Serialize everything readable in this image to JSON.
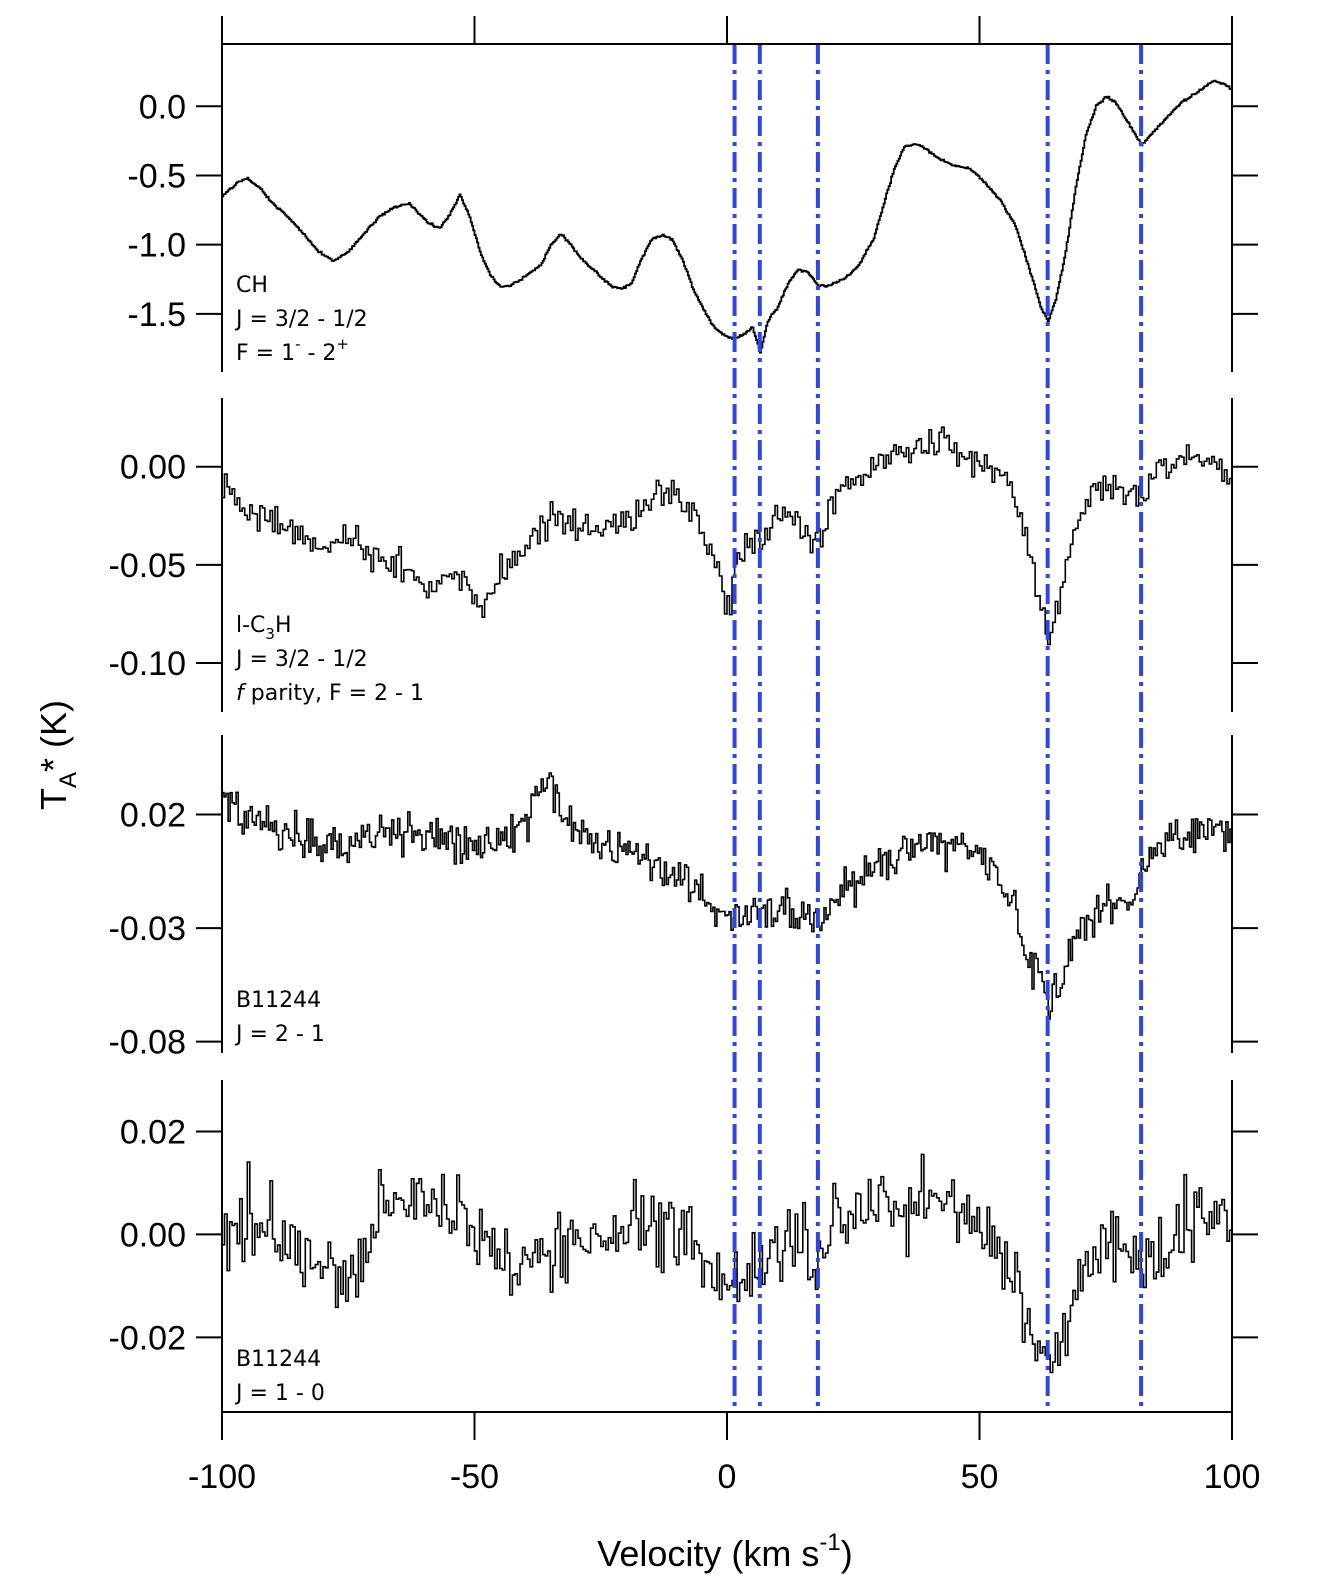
{
  "chart_data": {
    "type": "line",
    "xaxis": {
      "label_main": "Velocity (km s",
      "label_sup": "-1",
      "label_close": ")",
      "range": [
        -100,
        100
      ],
      "ticks": [
        -100,
        -50,
        0,
        50,
        100
      ],
      "tick_labels": [
        "-100",
        "-50",
        "0",
        "50",
        "100"
      ]
    },
    "yaxis": {
      "label_main": "T",
      "label_sub": "A",
      "label_rest": "* (K)"
    },
    "reference_lines_kms": [
      1.5,
      6.5,
      18.0,
      63.5,
      82.0
    ],
    "reference_line_color": "#2e46e6",
    "trace_color": "#000000",
    "panels": [
      {
        "id": "ch",
        "ylim": [
          -1.92,
          0.45
        ],
        "ticks": [
          0.0,
          -0.5,
          -1.0,
          -1.5
        ],
        "tick_labels": [
          "0.0",
          "-0.5",
          "-1.0",
          "-1.5"
        ],
        "label_lines": [
          [
            {
              "t": "CH"
            }
          ],
          [
            {
              "t": "J = 3/2 - 1/2"
            }
          ],
          [
            {
              "t": "F = 1"
            },
            {
              "t": "-",
              "sup": true
            },
            {
              "t": " - 2"
            },
            {
              "t": "+",
              "sup": true
            }
          ]
        ],
        "noise": 0.006,
        "step": 0.25,
        "points": [
          [
            -100,
            -0.65
          ],
          [
            -97,
            -0.55
          ],
          [
            -95,
            -0.52
          ],
          [
            -93,
            -0.58
          ],
          [
            -90,
            -0.7
          ],
          [
            -87,
            -0.8
          ],
          [
            -84,
            -0.92
          ],
          [
            -81,
            -1.05
          ],
          [
            -78,
            -1.12
          ],
          [
            -75,
            -1.05
          ],
          [
            -72,
            -0.92
          ],
          [
            -69,
            -0.8
          ],
          [
            -66,
            -0.73
          ],
          [
            -63,
            -0.7
          ],
          [
            -61,
            -0.78
          ],
          [
            -59,
            -0.85
          ],
          [
            -57,
            -0.88
          ],
          [
            -55,
            -0.78
          ],
          [
            -53,
            -0.64
          ],
          [
            -51,
            -0.8
          ],
          [
            -49,
            -1.05
          ],
          [
            -47,
            -1.22
          ],
          [
            -45,
            -1.3
          ],
          [
            -43,
            -1.3
          ],
          [
            -41,
            -1.25
          ],
          [
            -39,
            -1.2
          ],
          [
            -37,
            -1.15
          ],
          [
            -35,
            -1.0
          ],
          [
            -33,
            -0.92
          ],
          [
            -31,
            -1.0
          ],
          [
            -29,
            -1.1
          ],
          [
            -26,
            -1.2
          ],
          [
            -23,
            -1.3
          ],
          [
            -21,
            -1.32
          ],
          [
            -19,
            -1.28
          ],
          [
            -17,
            -1.1
          ],
          [
            -15,
            -0.96
          ],
          [
            -13,
            -0.93
          ],
          [
            -11,
            -0.96
          ],
          [
            -9,
            -1.1
          ],
          [
            -7,
            -1.3
          ],
          [
            -5,
            -1.45
          ],
          [
            -3,
            -1.58
          ],
          [
            -1,
            -1.65
          ],
          [
            1,
            -1.68
          ],
          [
            3,
            -1.65
          ],
          [
            5,
            -1.6
          ],
          [
            6.5,
            -1.78
          ],
          [
            8,
            -1.55
          ],
          [
            10,
            -1.45
          ],
          [
            12,
            -1.28
          ],
          [
            14,
            -1.18
          ],
          [
            16,
            -1.2
          ],
          [
            18,
            -1.3
          ],
          [
            20,
            -1.3
          ],
          [
            23,
            -1.25
          ],
          [
            26,
            -1.15
          ],
          [
            29,
            -0.95
          ],
          [
            31,
            -0.7
          ],
          [
            33,
            -0.45
          ],
          [
            35,
            -0.3
          ],
          [
            37,
            -0.27
          ],
          [
            39,
            -0.3
          ],
          [
            42,
            -0.38
          ],
          [
            45,
            -0.43
          ],
          [
            48,
            -0.45
          ],
          [
            51,
            -0.55
          ],
          [
            54,
            -0.68
          ],
          [
            57,
            -0.86
          ],
          [
            60,
            -1.2
          ],
          [
            62,
            -1.45
          ],
          [
            63.5,
            -1.55
          ],
          [
            65,
            -1.4
          ],
          [
            67,
            -1.05
          ],
          [
            69,
            -0.58
          ],
          [
            71,
            -0.2
          ],
          [
            73,
            0.0
          ],
          [
            75,
            0.07
          ],
          [
            77,
            0.02
          ],
          [
            79,
            -0.1
          ],
          [
            81,
            -0.22
          ],
          [
            82,
            -0.28
          ],
          [
            84,
            -0.2
          ],
          [
            87,
            -0.08
          ],
          [
            90,
            0.03
          ],
          [
            93,
            0.1
          ],
          [
            96,
            0.18
          ],
          [
            98,
            0.17
          ],
          [
            100,
            0.12
          ]
        ]
      },
      {
        "id": "c3h",
        "ylim": [
          -0.125,
          0.035
        ],
        "ticks": [
          0.0,
          -0.05,
          -0.1
        ],
        "tick_labels": [
          "0.00",
          "-0.05",
          "-0.10"
        ],
        "label_lines": [
          [
            {
              "t": "l-C"
            },
            {
              "t": "3",
              "sub": true
            },
            {
              "t": "H"
            }
          ],
          [
            {
              "t": "J = 3/2 - 1/2"
            }
          ],
          [
            {
              "t": "f",
              "italic": true
            },
            {
              "t": "  parity, F = 2 - 1"
            }
          ]
        ],
        "noise": 0.006,
        "step": 0.5,
        "points": [
          [
            -100,
            -0.01
          ],
          [
            -95,
            -0.022
          ],
          [
            -90,
            -0.028
          ],
          [
            -85,
            -0.033
          ],
          [
            -80,
            -0.04
          ],
          [
            -75,
            -0.035
          ],
          [
            -70,
            -0.045
          ],
          [
            -65,
            -0.05
          ],
          [
            -60,
            -0.06
          ],
          [
            -56,
            -0.06
          ],
          [
            -52,
            -0.06
          ],
          [
            -49,
            -0.07
          ],
          [
            -46,
            -0.06
          ],
          [
            -43,
            -0.048
          ],
          [
            -40,
            -0.04
          ],
          [
            -37,
            -0.03
          ],
          [
            -33,
            -0.025
          ],
          [
            -30,
            -0.028
          ],
          [
            -25,
            -0.033
          ],
          [
            -20,
            -0.03
          ],
          [
            -15,
            -0.018
          ],
          [
            -12,
            -0.01
          ],
          [
            -9,
            -0.02
          ],
          [
            -6,
            -0.03
          ],
          [
            -3,
            -0.045
          ],
          [
            -1,
            -0.07
          ],
          [
            0.5,
            -0.065
          ],
          [
            2,
            -0.045
          ],
          [
            5,
            -0.038
          ],
          [
            8,
            -0.035
          ],
          [
            11,
            -0.022
          ],
          [
            14,
            -0.03
          ],
          [
            17,
            -0.04
          ],
          [
            20,
            -0.025
          ],
          [
            23,
            -0.008
          ],
          [
            27,
            -0.005
          ],
          [
            31,
            0.002
          ],
          [
            35,
            0.007
          ],
          [
            39,
            0.01
          ],
          [
            43,
            0.017
          ],
          [
            46,
            0.005
          ],
          [
            50,
            0.0
          ],
          [
            54,
            -0.005
          ],
          [
            57,
            -0.015
          ],
          [
            59,
            -0.035
          ],
          [
            61,
            -0.06
          ],
          [
            63.5,
            -0.098
          ],
          [
            65,
            -0.075
          ],
          [
            67,
            -0.05
          ],
          [
            69,
            -0.028
          ],
          [
            72,
            -0.012
          ],
          [
            75,
            -0.01
          ],
          [
            78,
            -0.012
          ],
          [
            81,
            -0.016
          ],
          [
            83,
            -0.01
          ],
          [
            86,
            0.0
          ],
          [
            90,
            0.005
          ],
          [
            95,
            0.002
          ],
          [
            100,
            -0.005
          ]
        ]
      },
      {
        "id": "b1",
        "ylim": [
          -0.085,
          0.055
        ],
        "ticks": [
          0.02,
          -0.03,
          -0.08
        ],
        "tick_labels": [
          "0.02",
          "-0.03",
          "-0.08"
        ],
        "label_lines": [
          [
            {
              "t": "B11244"
            }
          ],
          [
            {
              "t": "J = 2 - 1"
            }
          ]
        ],
        "noise": 0.0065,
        "step": 0.4,
        "points": [
          [
            -100,
            0.025
          ],
          [
            -95,
            0.018
          ],
          [
            -90,
            0.015
          ],
          [
            -85,
            0.01
          ],
          [
            -80,
            0.008
          ],
          [
            -75,
            0.006
          ],
          [
            -70,
            0.01
          ],
          [
            -65,
            0.012
          ],
          [
            -60,
            0.01
          ],
          [
            -55,
            0.008
          ],
          [
            -50,
            0.006
          ],
          [
            -45,
            0.008
          ],
          [
            -40,
            0.018
          ],
          [
            -37,
            0.03
          ],
          [
            -35,
            0.035
          ],
          [
            -33,
            0.022
          ],
          [
            -30,
            0.013
          ],
          [
            -25,
            0.008
          ],
          [
            -20,
            0.003
          ],
          [
            -15,
            0.0
          ],
          [
            -10,
            -0.008
          ],
          [
            -5,
            -0.015
          ],
          [
            -2,
            -0.025
          ],
          [
            0,
            -0.025
          ],
          [
            3,
            -0.028
          ],
          [
            6,
            -0.022
          ],
          [
            10,
            -0.02
          ],
          [
            15,
            -0.025
          ],
          [
            19,
            -0.025
          ],
          [
            22,
            -0.012
          ],
          [
            26,
            -0.01
          ],
          [
            30,
            -0.003
          ],
          [
            35,
            0.002
          ],
          [
            40,
            0.008
          ],
          [
            45,
            0.006
          ],
          [
            50,
            0.002
          ],
          [
            54,
            -0.008
          ],
          [
            57,
            -0.025
          ],
          [
            60,
            -0.045
          ],
          [
            62,
            -0.055
          ],
          [
            63.5,
            -0.068
          ],
          [
            66,
            -0.055
          ],
          [
            68,
            -0.04
          ],
          [
            71,
            -0.028
          ],
          [
            74,
            -0.02
          ],
          [
            77,
            -0.018
          ],
          [
            80,
            -0.02
          ],
          [
            82,
            -0.008
          ],
          [
            85,
            0.005
          ],
          [
            90,
            0.01
          ],
          [
            95,
            0.012
          ],
          [
            100,
            0.012
          ]
        ]
      },
      {
        "id": "b2",
        "ylim": [
          -0.0345,
          0.03
        ],
        "ticks": [
          0.02,
          0.0,
          -0.02
        ],
        "tick_labels": [
          "0.02",
          "0.00",
          "-0.02"
        ],
        "label_lines": [
          [
            {
              "t": "B11244"
            }
          ],
          [
            {
              "t": "J = 1 - 0"
            }
          ]
        ],
        "noise": 0.0055,
        "step": 0.5,
        "points": [
          [
            -100,
            -0.002
          ],
          [
            -95,
            0.003
          ],
          [
            -90,
            0.0
          ],
          [
            -85,
            -0.003
          ],
          [
            -80,
            -0.006
          ],
          [
            -77,
            -0.01
          ],
          [
            -74,
            -0.006
          ],
          [
            -70,
            0.002
          ],
          [
            -65,
            0.006
          ],
          [
            -60,
            0.008
          ],
          [
            -55,
            0.004
          ],
          [
            -50,
            0.0
          ],
          [
            -45,
            -0.002
          ],
          [
            -42,
            -0.01
          ],
          [
            -40,
            -0.004
          ],
          [
            -35,
            -0.003
          ],
          [
            -30,
            -0.002
          ],
          [
            -25,
            -0.001
          ],
          [
            -20,
            0.0
          ],
          [
            -15,
            0.003
          ],
          [
            -10,
            0.001
          ],
          [
            -5,
            -0.004
          ],
          [
            -2,
            -0.008
          ],
          [
            0,
            -0.009
          ],
          [
            3,
            -0.008
          ],
          [
            6,
            -0.01
          ],
          [
            9,
            -0.003
          ],
          [
            12,
            0.0
          ],
          [
            15,
            -0.002
          ],
          [
            18,
            -0.006
          ],
          [
            21,
            0.002
          ],
          [
            25,
            0.004
          ],
          [
            30,
            0.006
          ],
          [
            35,
            0.005
          ],
          [
            40,
            0.006
          ],
          [
            45,
            0.005
          ],
          [
            50,
            0.0
          ],
          [
            54,
            -0.004
          ],
          [
            57,
            -0.01
          ],
          [
            60,
            -0.02
          ],
          [
            62,
            -0.026
          ],
          [
            63.5,
            -0.024
          ],
          [
            65,
            -0.022
          ],
          [
            67,
            -0.02
          ],
          [
            69,
            -0.008
          ],
          [
            72,
            -0.003
          ],
          [
            75,
            0.0
          ],
          [
            78,
            -0.003
          ],
          [
            81,
            -0.007
          ],
          [
            83,
            -0.005
          ],
          [
            86,
            -0.002
          ],
          [
            90,
            0.003
          ],
          [
            95,
            0.001
          ],
          [
            100,
            0.001
          ]
        ]
      }
    ]
  }
}
